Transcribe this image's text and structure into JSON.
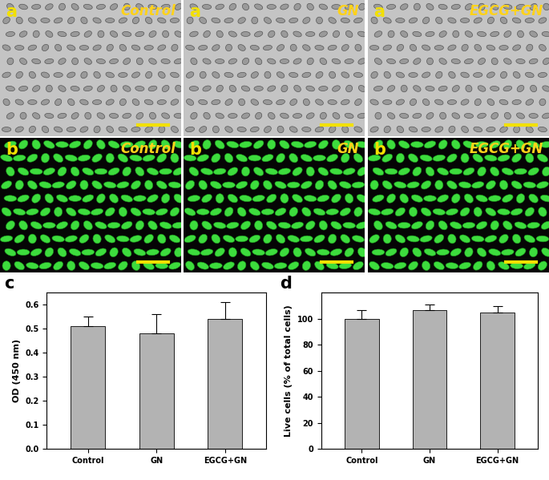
{
  "image_panels": [
    {
      "label": "a",
      "title": "Control"
    },
    {
      "label": "a",
      "title": "GN"
    },
    {
      "label": "a",
      "title": "EGCG+GN"
    },
    {
      "label": "b",
      "title": "Control"
    },
    {
      "label": "b",
      "title": "GN"
    },
    {
      "label": "b",
      "title": "EGCG+GN"
    }
  ],
  "chart_data": [
    {
      "type": "bar",
      "panel_label": "c",
      "categories": [
        "Control",
        "GN",
        "EGCG+GN"
      ],
      "values": [
        0.51,
        0.48,
        0.54
      ],
      "errors": [
        0.04,
        0.08,
        0.07
      ],
      "y_label": "OD (450 nm)",
      "color": "#b3b3b3",
      "ylim": [
        0,
        0.65
      ],
      "yticks": [
        0.0,
        0.1,
        0.2,
        0.3,
        0.4,
        0.5,
        0.6
      ]
    },
    {
      "type": "bar",
      "panel_label": "d",
      "categories": [
        "Control",
        "GN",
        "EGCG+GN"
      ],
      "values": [
        100,
        106.5,
        105
      ],
      "errors": [
        6.5,
        4.5,
        5
      ],
      "y_label": "Live cells (% of total cells)",
      "color": "#b3b3b3",
      "ylim": [
        0,
        120
      ],
      "yticks": [
        0,
        20,
        40,
        60,
        80,
        100
      ]
    }
  ]
}
